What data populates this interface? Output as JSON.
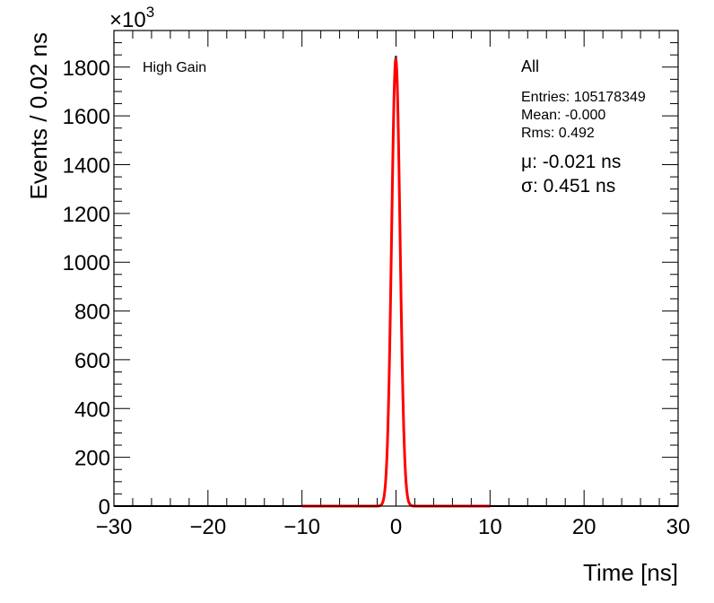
{
  "chart_data": {
    "type": "line",
    "xlabel": "Time [ns]",
    "ylabel": "Events / 0.02 ns",
    "y_multiplier": "×10",
    "y_multiplier_exp": "3",
    "xlim": [
      -30,
      30
    ],
    "ylim": [
      0,
      1950
    ],
    "x_ticks": [
      -30,
      -20,
      -10,
      0,
      10,
      20,
      30
    ],
    "x_tick_labels": [
      "−30",
      "−20",
      "−10",
      "0",
      "10",
      "20",
      "30"
    ],
    "y_ticks": [
      0,
      200,
      400,
      600,
      800,
      1000,
      1200,
      1400,
      1600,
      1800
    ],
    "y_tick_labels": [
      "0",
      "200",
      "400",
      "600",
      "800",
      "1000",
      "1200",
      "1400",
      "1600",
      "1800"
    ],
    "annotation_left": "High Gain",
    "stats": {
      "title": "All",
      "entries": "Entries: 105178349",
      "mean": "Mean: -0.000",
      "rms": "Rms: 0.492"
    },
    "fit": {
      "mu_label": "μ: -0.021 ns",
      "sigma_label": "σ: 0.451 ns",
      "mu": -0.021,
      "sigma": 0.451,
      "peak": 1830,
      "range": [
        -10,
        10
      ]
    },
    "histogram": {
      "peak": 1850,
      "mean": -0.03,
      "sigma": 0.44
    },
    "colors": {
      "histogram": "#000000",
      "fit": "#ff0000",
      "frame": "#000000"
    }
  }
}
